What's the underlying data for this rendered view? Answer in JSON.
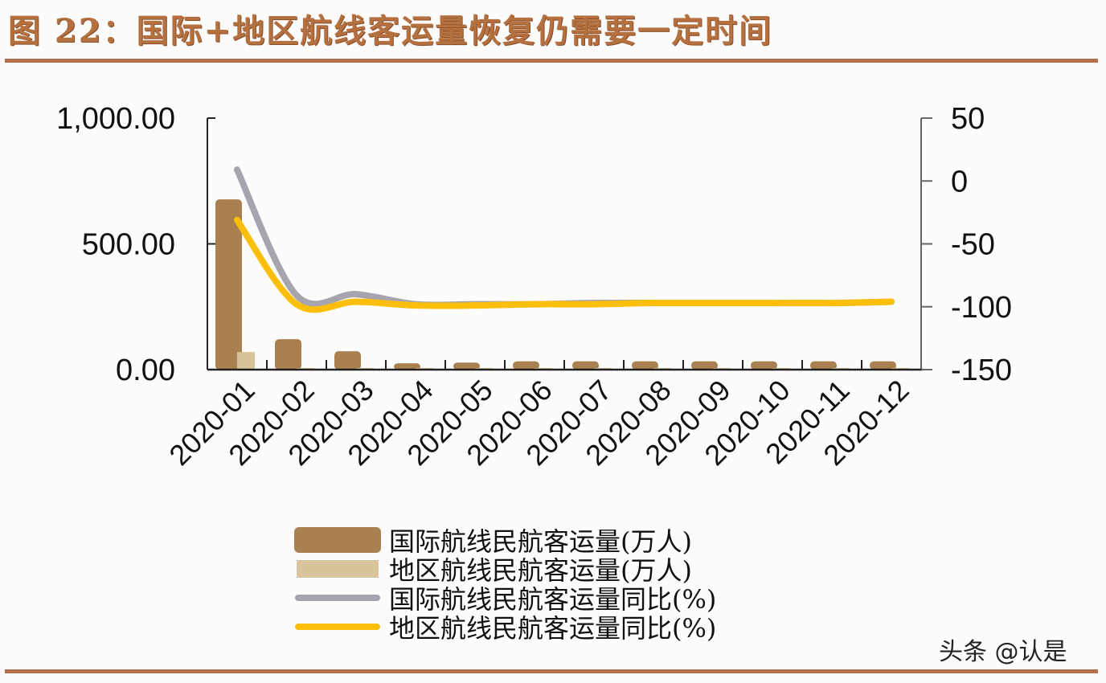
{
  "title": "图 22：国际+地区航线客运量恢复仍需要一定时间",
  "watermark": "头条 @认是",
  "colors": {
    "accent_rule": "#b2714a",
    "title": "#b5703f",
    "intl_bar": "#a9804f",
    "regional_bar": "#d9c39a",
    "intl_yoy_line": "#a7a4ad",
    "regional_yoy_line": "#fbbf0b"
  },
  "left_axis": {
    "ticks": [
      "1,000.00",
      "500.00",
      "0.00"
    ]
  },
  "right_axis": {
    "ticks": [
      "50",
      "0",
      "-50",
      "-100",
      "-150"
    ]
  },
  "legend": [
    {
      "label": "国际航线民航客运量(万人)",
      "kind": "bar",
      "color": "#a9804f"
    },
    {
      "label": "地区航线民航客运量(万人)",
      "kind": "bar",
      "color": "#d9c39a"
    },
    {
      "label": "国际航线民航客运量同比(%)",
      "kind": "line",
      "color": "#a7a4ad"
    },
    {
      "label": "地区航线民航客运量同比(%)",
      "kind": "line",
      "color": "#fbbf0b"
    }
  ],
  "chart_data": {
    "type": "bar",
    "title": "国际+地区航线客运量恢复仍需要一定时间",
    "categories": [
      "2020-01",
      "2020-02",
      "2020-03",
      "2020-04",
      "2020-05",
      "2020-06",
      "2020-07",
      "2020-08",
      "2020-09",
      "2020-10",
      "2020-11",
      "2020-12"
    ],
    "series": [
      {
        "name": "国际航线民航客运量(万人)",
        "type": "bar",
        "axis": "left",
        "values": [
          677,
          121,
          73,
          25,
          28,
          33,
          33,
          33,
          33,
          33,
          33,
          33
        ]
      },
      {
        "name": "地区航线民航客运量(万人)",
        "type": "bar",
        "axis": "left",
        "values": [
          70,
          2,
          1,
          1,
          1,
          1,
          1,
          1,
          1,
          1,
          1,
          1
        ]
      },
      {
        "name": "国际航线民航客运量同比(%)",
        "type": "line",
        "axis": "right",
        "values": [
          9,
          -91,
          -90,
          -98,
          -98,
          -98,
          -97,
          -97,
          -97,
          -97,
          -97,
          -96
        ]
      },
      {
        "name": "地区航线民航客运量同比(%)",
        "type": "line",
        "axis": "right",
        "values": [
          -31,
          -98,
          -96,
          -99,
          -99,
          -98,
          -98,
          -97,
          -97,
          -97,
          -97,
          -96
        ]
      }
    ],
    "xlabel": "",
    "ylabel_left": "",
    "ylabel_right": "",
    "ylim_left": [
      0,
      1000
    ],
    "ylim_right": [
      -150,
      50
    ],
    "grid": false,
    "legend_position": "bottom"
  }
}
